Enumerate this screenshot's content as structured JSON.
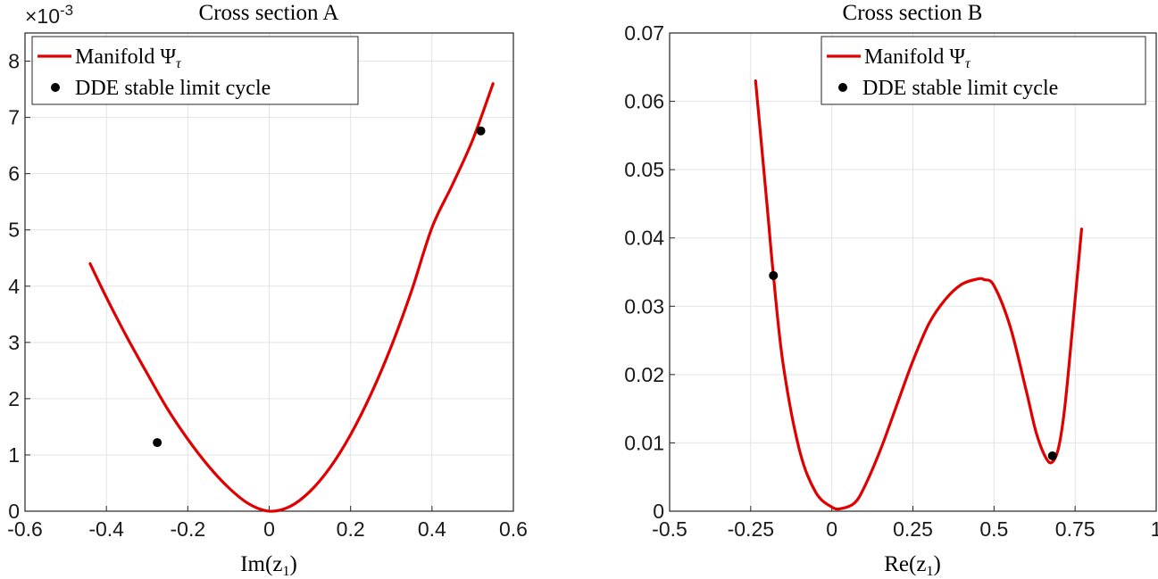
{
  "chart_data": [
    {
      "type": "line",
      "title": "Cross section A",
      "xlabel": "Im(z1)",
      "xlabel_main": "Im(z",
      "xlabel_sub": "1",
      "xlabel_close": ")",
      "ylabel": "",
      "xlim": [
        -0.6,
        0.6
      ],
      "ylim": [
        0,
        0.0085
      ],
      "xticks": [
        -0.6,
        -0.4,
        -0.2,
        0,
        0.2,
        0.4,
        0.6
      ],
      "xtick_labels": [
        "-0.6",
        "-0.4",
        "-0.2",
        "0",
        "0.2",
        "0.4",
        "0.6"
      ],
      "yticks": [
        0,
        0.001,
        0.002,
        0.003,
        0.004,
        0.005,
        0.006,
        0.007,
        0.008
      ],
      "ytick_labels": [
        "0",
        "1",
        "2",
        "3",
        "4",
        "5",
        "6",
        "7",
        "8"
      ],
      "exponent_label": "×10",
      "exponent_power": "-3",
      "grid": true,
      "legend_position": "top-left",
      "series": [
        {
          "name": "Manifold Ψτ",
          "kind": "line",
          "color": "#e00000",
          "x": [
            -0.44,
            -0.4,
            -0.35,
            -0.3,
            -0.25,
            -0.2,
            -0.15,
            -0.1,
            -0.05,
            0,
            0.05,
            0.1,
            0.15,
            0.2,
            0.25,
            0.3,
            0.35,
            0.4,
            0.45,
            0.5,
            0.55
          ],
          "y": [
            0.0044,
            0.0038,
            0.0031,
            0.00245,
            0.00182,
            0.00128,
            0.00081,
            0.00042,
            0.00013,
            0,
            8e-05,
            0.00035,
            0.00078,
            0.00136,
            0.00208,
            0.00293,
            0.00392,
            0.00504,
            0.0058,
            0.0066,
            0.0076
          ]
        },
        {
          "name": "DDE stable limit cycle",
          "kind": "scatter",
          "color": "#000000",
          "x": [
            -0.275,
            0.52
          ],
          "y": [
            0.00122,
            0.00676
          ]
        }
      ],
      "legend": [
        {
          "label_main": "Manifold Ψ",
          "label_sub": "τ",
          "kind": "line"
        },
        {
          "label_main": "DDE stable limit cycle",
          "label_sub": "",
          "kind": "scatter"
        }
      ]
    },
    {
      "type": "line",
      "title": "Cross section B",
      "xlabel": "Re(z1)",
      "xlabel_main": "Re(z",
      "xlabel_sub": "1",
      "xlabel_close": ")",
      "ylabel": "",
      "xlim": [
        -0.5,
        1
      ],
      "ylim": [
        0,
        0.07
      ],
      "xticks": [
        -0.5,
        -0.25,
        0,
        0.25,
        0.5,
        0.75,
        1
      ],
      "xtick_labels": [
        "-0.5",
        "-0.25",
        "0",
        "0.25",
        "0.5",
        "0.75",
        "1"
      ],
      "yticks": [
        0,
        0.01,
        0.02,
        0.03,
        0.04,
        0.05,
        0.06,
        0.07
      ],
      "ytick_labels": [
        "0",
        "0.01",
        "0.02",
        "0.03",
        "0.04",
        "0.05",
        "0.06",
        "0.07"
      ],
      "grid": true,
      "legend_position": "top-right",
      "series": [
        {
          "name": "Manifold Ψτ",
          "kind": "line",
          "color": "#e00000",
          "x": [
            -0.235,
            -0.2,
            -0.18,
            -0.15,
            -0.1,
            -0.05,
            0,
            0.03,
            0.07,
            0.1,
            0.15,
            0.2,
            0.25,
            0.3,
            0.35,
            0.4,
            0.45,
            0.47,
            0.5,
            0.55,
            0.6,
            0.63,
            0.66,
            0.68,
            0.7,
            0.72,
            0.75,
            0.77
          ],
          "y": [
            0.063,
            0.045,
            0.0345,
            0.0215,
            0.009,
            0.0028,
            0.0006,
            0.0004,
            0.0012,
            0.0035,
            0.009,
            0.0155,
            0.022,
            0.0275,
            0.031,
            0.0332,
            0.034,
            0.0339,
            0.033,
            0.027,
            0.0175,
            0.0115,
            0.0078,
            0.0072,
            0.0095,
            0.016,
            0.031,
            0.0413
          ]
        },
        {
          "name": "DDE stable limit cycle",
          "kind": "scatter",
          "color": "#000000",
          "x": [
            -0.18,
            0.68
          ],
          "y": [
            0.0345,
            0.0081
          ]
        }
      ],
      "legend": [
        {
          "label_main": "Manifold Ψ",
          "label_sub": "τ",
          "kind": "line"
        },
        {
          "label_main": "DDE stable limit cycle",
          "label_sub": "",
          "kind": "scatter"
        }
      ]
    }
  ]
}
